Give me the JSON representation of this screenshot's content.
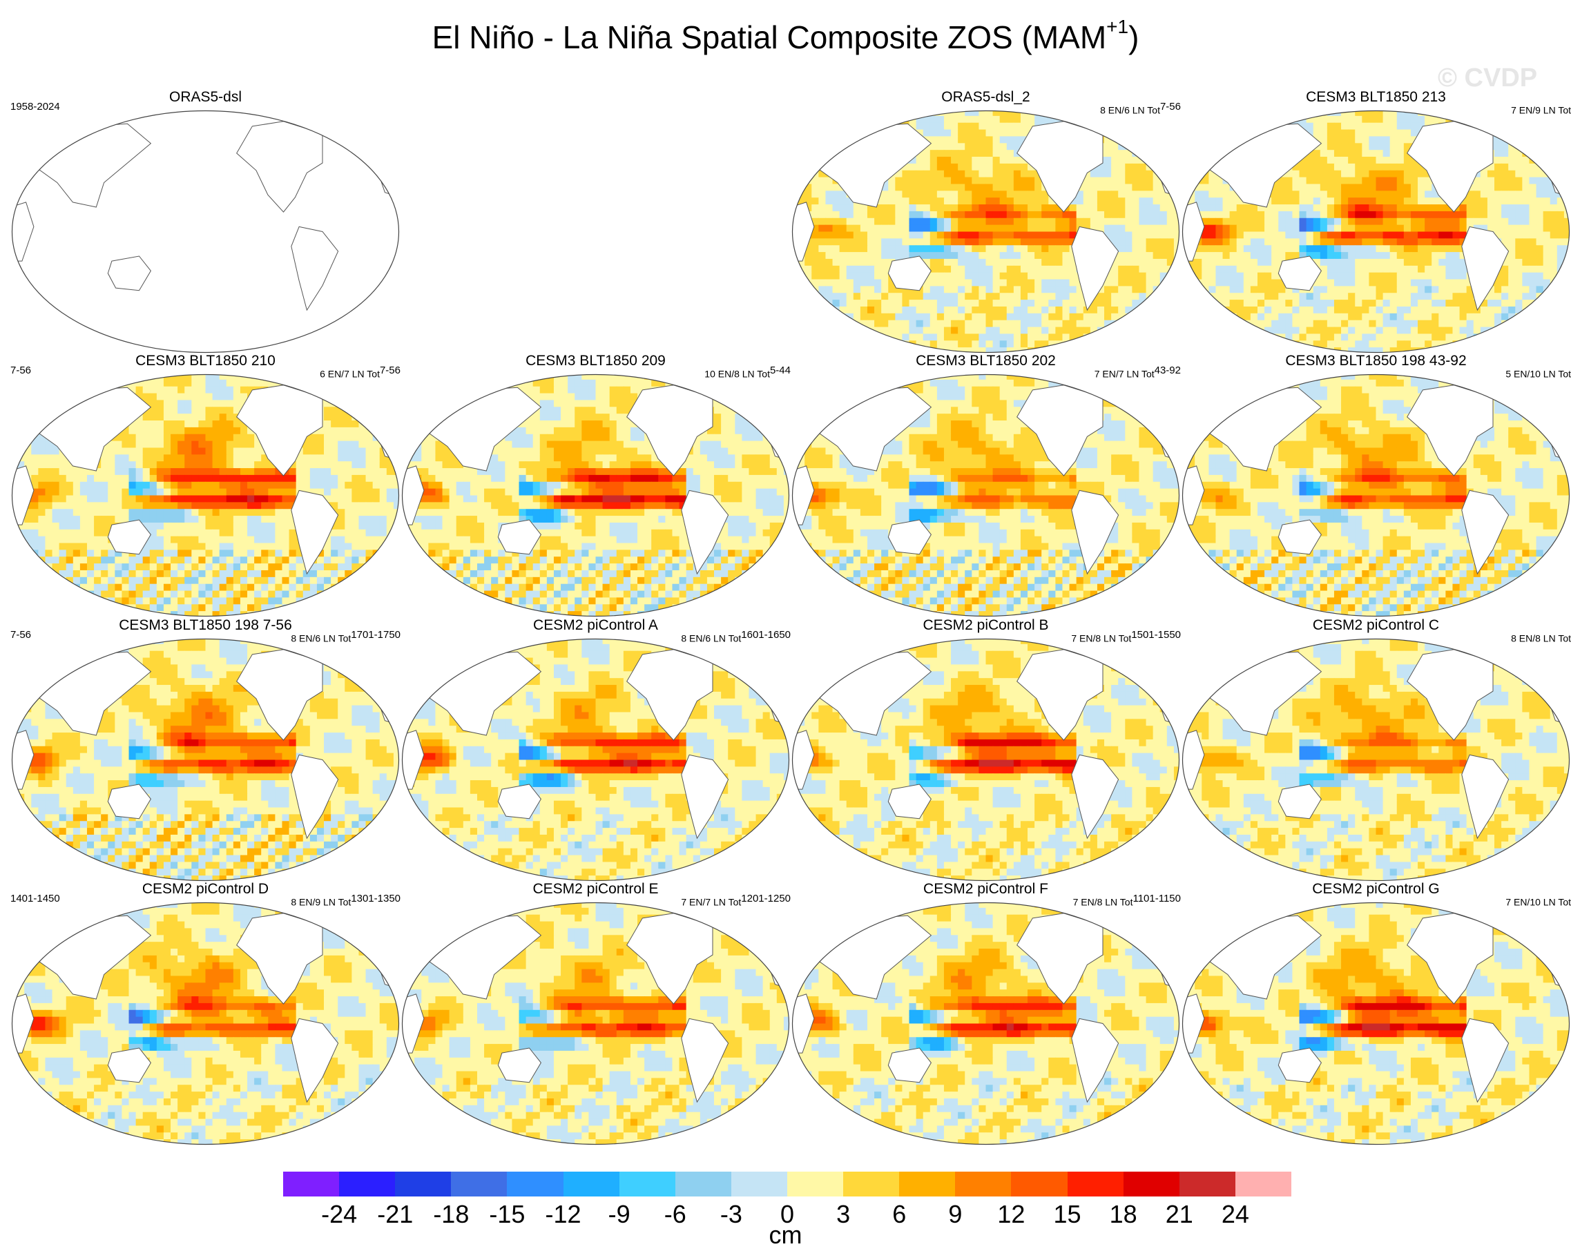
{
  "title": {
    "main": "El Niño - La Niña Spatial Composite ZOS (MAM",
    "sup": "+1",
    "close": ")"
  },
  "watermark": "© CVDP",
  "colors": {
    "scale": [
      "#7f1fff",
      "#2b1fff",
      "#1f3fe6",
      "#3f6fe6",
      "#2f8fff",
      "#1fafff",
      "#3fcfff",
      "#8fd0f0",
      "#c5e4f5",
      "#fff8a6",
      "#ffd83a",
      "#ffb000",
      "#ff8000",
      "#ff5a00",
      "#ff1f00",
      "#e00000",
      "#cc2a2a",
      "#ffb0b0"
    ],
    "land": "#ffffff",
    "coast": "#555555"
  },
  "panels": [
    {
      "title": "ORAS5-dsl",
      "left": "1958-2024",
      "right": "",
      "tot": "",
      "empty": true
    },
    {
      "title": "ORAS5-dsl_2",
      "left": "",
      "right": "8 EN/6 LN Tot",
      "tot": "7-56",
      "empty": false
    },
    {
      "title": "CESM3 BLT1850 213",
      "left": "",
      "right": "7 EN/9 LN Tot",
      "tot": "",
      "empty": false
    },
    {
      "title": "CESM3 BLT1850 210",
      "left": "7-56",
      "right": "6 EN/7 LN Tot",
      "tot": "7-56",
      "empty": false
    },
    {
      "title": "CESM3 BLT1850 209",
      "left": "",
      "right": "10 EN/8 LN Tot",
      "tot": "5-44",
      "empty": false
    },
    {
      "title": "CESM3 BLT1850 202",
      "left": "",
      "right": "7 EN/7 LN Tot",
      "tot": "43-92",
      "empty": false
    },
    {
      "title": "CESM3 BLT1850 198 43-92",
      "left": "",
      "right": "5 EN/10 LN Tot",
      "tot": "",
      "empty": false
    },
    {
      "title": "CESM3 BLT1850 198 7-56",
      "left": "7-56",
      "right": "8 EN/6 LN Tot",
      "tot": "1701-1750",
      "empty": false
    },
    {
      "title": "CESM2 piControl A",
      "left": "",
      "right": "8 EN/6 LN Tot",
      "tot": "1601-1650",
      "empty": false
    },
    {
      "title": "CESM2 piControl B",
      "left": "",
      "right": "7 EN/8 LN Tot",
      "tot": "1501-1550",
      "empty": false
    },
    {
      "title": "CESM2 piControl C",
      "left": "",
      "right": "8 EN/8 LN Tot",
      "tot": "",
      "empty": false
    },
    {
      "title": "CESM2 piControl D",
      "left": "1401-1450",
      "right": "8 EN/9 LN Tot",
      "tot": "1301-1350",
      "empty": false
    },
    {
      "title": "CESM2 piControl E",
      "left": "",
      "right": "7 EN/7 LN Tot",
      "tot": "1201-1250",
      "empty": false
    },
    {
      "title": "CESM2 piControl F",
      "left": "",
      "right": "7 EN/8 LN Tot",
      "tot": "1101-1150",
      "empty": false
    },
    {
      "title": "CESM2 piControl G",
      "left": "",
      "right": "7 EN/10 LN Tot",
      "tot": "",
      "empty": false
    }
  ],
  "chart_data": {
    "type": "heatmap",
    "title": "El Niño - La Niña Spatial Composite ZOS (MAM+1)",
    "variable": "ZOS",
    "units": "cm",
    "colorbar_levels": [
      -24,
      -21,
      -18,
      -15,
      -12,
      -9,
      -6,
      -3,
      0,
      3,
      6,
      9,
      12,
      15,
      18,
      21,
      24
    ],
    "colorbar_tick_labels": [
      "-24",
      "-21",
      "-18",
      "-15",
      "-12",
      "-9",
      "-6",
      "-3",
      "0",
      "3",
      "6",
      "9",
      "12",
      "15",
      "18",
      "21",
      "24"
    ],
    "colorbar_range": [
      -24,
      24
    ],
    "legend_position": "bottom",
    "panel_count": 15
  }
}
